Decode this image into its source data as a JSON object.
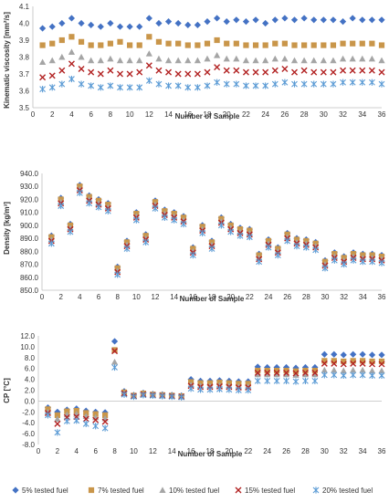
{
  "series_styles": [
    {
      "name": "5% tested fuel",
      "color": "#4472C4",
      "marker": "diamond"
    },
    {
      "name": "7% tested fuel",
      "color": "#C9964A",
      "marker": "square"
    },
    {
      "name": "10% tested fuel",
      "color": "#A5A5A5",
      "marker": "triangle"
    },
    {
      "name": "15% tested fuel",
      "color": "#B22222",
      "marker": "x"
    },
    {
      "name": "20% tested fuel",
      "color": "#5B9BD5",
      "marker": "star"
    }
  ],
  "chart_data": [
    {
      "type": "scatter",
      "ylabel": "Kinematic viscosity [mm²/s]",
      "xlabel": "Number of Sample",
      "xlim": [
        0,
        36
      ],
      "xticks": [
        0,
        2,
        4,
        6,
        8,
        10,
        12,
        14,
        16,
        18,
        20,
        22,
        24,
        26,
        28,
        30,
        32,
        34,
        36
      ],
      "ylim": [
        3.5,
        4.1
      ],
      "yticks": [
        "3.5",
        "3.6",
        "3.7",
        "3.8",
        "3.9",
        "4.0",
        "4.1"
      ],
      "grid": false,
      "x": [
        1,
        2,
        3,
        4,
        5,
        6,
        7,
        8,
        9,
        10,
        11,
        12,
        13,
        14,
        15,
        16,
        17,
        18,
        19,
        20,
        21,
        22,
        23,
        24,
        25,
        26,
        27,
        28,
        29,
        30,
        31,
        32,
        33,
        34,
        35,
        36
      ],
      "series": [
        {
          "name": "5% tested fuel",
          "values": [
            3.97,
            3.98,
            4.0,
            4.03,
            4.0,
            3.99,
            3.98,
            4.0,
            3.98,
            3.98,
            3.98,
            4.03,
            4.0,
            4.01,
            4.0,
            3.99,
            3.99,
            4.01,
            4.03,
            4.01,
            4.02,
            4.01,
            4.02,
            4.0,
            4.02,
            4.03,
            4.02,
            4.03,
            4.02,
            4.02,
            4.02,
            4.01,
            4.03,
            4.02,
            4.02,
            4.02
          ]
        },
        {
          "name": "7% tested fuel",
          "values": [
            3.87,
            3.88,
            3.9,
            3.92,
            3.89,
            3.87,
            3.87,
            3.88,
            3.89,
            3.87,
            3.87,
            3.92,
            3.89,
            3.88,
            3.88,
            3.87,
            3.87,
            3.88,
            3.9,
            3.88,
            3.88,
            3.87,
            3.87,
            3.87,
            3.88,
            3.88,
            3.87,
            3.87,
            3.87,
            3.87,
            3.87,
            3.88,
            3.88,
            3.88,
            3.88,
            3.87
          ]
        },
        {
          "name": "10% tested fuel",
          "values": [
            3.77,
            3.78,
            3.8,
            3.83,
            3.8,
            3.78,
            3.78,
            3.79,
            3.78,
            3.78,
            3.78,
            3.82,
            3.79,
            3.78,
            3.78,
            3.78,
            3.78,
            3.79,
            3.81,
            3.79,
            3.79,
            3.78,
            3.78,
            3.78,
            3.79,
            3.79,
            3.78,
            3.78,
            3.78,
            3.78,
            3.78,
            3.79,
            3.79,
            3.79,
            3.79,
            3.78
          ]
        },
        {
          "name": "15% tested fuel",
          "values": [
            3.68,
            3.69,
            3.72,
            3.76,
            3.73,
            3.71,
            3.7,
            3.72,
            3.7,
            3.7,
            3.71,
            3.75,
            3.72,
            3.71,
            3.7,
            3.7,
            3.7,
            3.71,
            3.74,
            3.72,
            3.72,
            3.71,
            3.71,
            3.71,
            3.72,
            3.73,
            3.71,
            3.72,
            3.71,
            3.71,
            3.71,
            3.72,
            3.72,
            3.72,
            3.72,
            3.71
          ]
        },
        {
          "name": "20% tested fuel",
          "values": [
            3.61,
            3.62,
            3.64,
            3.67,
            3.64,
            3.63,
            3.62,
            3.63,
            3.62,
            3.62,
            3.62,
            3.66,
            3.64,
            3.63,
            3.63,
            3.62,
            3.62,
            3.63,
            3.65,
            3.64,
            3.64,
            3.63,
            3.63,
            3.63,
            3.64,
            3.65,
            3.64,
            3.64,
            3.64,
            3.64,
            3.64,
            3.65,
            3.65,
            3.65,
            3.65,
            3.64
          ]
        }
      ]
    },
    {
      "type": "scatter",
      "ylabel": "Density [kg/m³]",
      "xlabel": "Number of Sample",
      "xlim": [
        0,
        36
      ],
      "xticks": [
        0,
        2,
        4,
        6,
        8,
        10,
        12,
        14,
        16,
        18,
        20,
        22,
        24,
        26,
        28,
        30,
        32,
        34,
        36
      ],
      "ylim": [
        850,
        940
      ],
      "yticks": [
        "850.0",
        "860.0",
        "870.0",
        "880.0",
        "890.0",
        "900.0",
        "910.0",
        "920.0",
        "930.0",
        "940.0"
      ],
      "grid": false,
      "x": [
        1,
        2,
        3,
        4,
        5,
        6,
        7,
        8,
        9,
        10,
        11,
        12,
        13,
        14,
        15,
        16,
        17,
        18,
        19,
        20,
        21,
        22,
        23,
        24,
        25,
        26,
        27,
        28,
        29,
        30,
        31,
        32,
        33,
        34,
        35,
        36
      ],
      "series": [
        {
          "name": "5% tested fuel",
          "values": [
            892,
            921,
            901,
            931,
            923,
            920,
            917,
            868,
            888,
            910,
            893,
            919,
            912,
            910,
            907,
            883,
            900,
            888,
            906,
            901,
            898,
            897,
            878,
            889,
            883,
            894,
            890,
            889,
            887,
            873,
            879,
            876,
            879,
            878,
            878,
            877
          ]
        },
        {
          "name": "7% tested fuel",
          "values": [
            891,
            920,
            900,
            930,
            922,
            919,
            916,
            867,
            887,
            909,
            892,
            918,
            911,
            909,
            906,
            882,
            899,
            887,
            905,
            900,
            897,
            896,
            877,
            888,
            882,
            893,
            889,
            888,
            886,
            872,
            878,
            875,
            878,
            877,
            877,
            876
          ]
        },
        {
          "name": "10% tested fuel",
          "values": [
            889,
            918,
            898,
            928,
            920,
            917,
            914,
            865,
            885,
            907,
            890,
            916,
            909,
            907,
            904,
            880,
            897,
            885,
            903,
            898,
            895,
            894,
            875,
            886,
            880,
            891,
            887,
            886,
            884,
            870,
            876,
            873,
            876,
            875,
            875,
            874
          ]
        },
        {
          "name": "15% tested fuel",
          "values": [
            888,
            917,
            897,
            927,
            919,
            916,
            913,
            864,
            884,
            906,
            889,
            915,
            908,
            906,
            903,
            879,
            896,
            884,
            902,
            897,
            894,
            893,
            874,
            885,
            879,
            890,
            886,
            885,
            883,
            869,
            875,
            872,
            875,
            874,
            874,
            873
          ]
        },
        {
          "name": "20% tested fuel",
          "values": [
            886,
            915,
            895,
            925,
            917,
            914,
            911,
            862,
            882,
            904,
            887,
            913,
            906,
            904,
            901,
            877,
            894,
            882,
            900,
            895,
            892,
            891,
            872,
            883,
            877,
            888,
            884,
            883,
            881,
            867,
            873,
            870,
            873,
            872,
            872,
            871
          ]
        }
      ]
    },
    {
      "type": "scatter",
      "ylabel": "CP [°C]",
      "xlabel": "Number of Sample",
      "xlim": [
        0,
        36
      ],
      "xticks": [
        0,
        2,
        4,
        6,
        8,
        10,
        12,
        14,
        16,
        18,
        20,
        22,
        24,
        26,
        28,
        30,
        32,
        34,
        36
      ],
      "ylim": [
        -8,
        12
      ],
      "yticks": [
        "-8.0",
        "-6.0",
        "-4.0",
        "-2.0",
        "0.0",
        "2.0",
        "4.0",
        "6.0",
        "8.0",
        "10.0",
        "12.0"
      ],
      "grid": false,
      "x": [
        1,
        2,
        3,
        4,
        5,
        6,
        7,
        8,
        9,
        10,
        11,
        12,
        13,
        14,
        15,
        16,
        17,
        18,
        19,
        20,
        21,
        22,
        23,
        24,
        25,
        26,
        27,
        28,
        29,
        30,
        31,
        32,
        33,
        34,
        35,
        36
      ],
      "series": [
        {
          "name": "5% tested fuel",
          "values": [
            -1.2,
            -2.0,
            -1.6,
            -1.4,
            -1.8,
            -2.0,
            -2.1,
            11.0,
            1.8,
            1.1,
            1.5,
            1.3,
            1.2,
            1.1,
            1.0,
            4.0,
            3.7,
            3.7,
            3.8,
            3.7,
            3.6,
            3.6,
            6.3,
            6.2,
            6.2,
            6.2,
            6.1,
            6.2,
            6.2,
            8.6,
            8.6,
            8.5,
            8.6,
            8.6,
            8.5,
            8.5
          ]
        },
        {
          "name": "7% tested fuel",
          "values": [
            -1.5,
            -2.6,
            -1.9,
            -1.8,
            -2.2,
            -2.4,
            -2.6,
            9.4,
            1.6,
            1.0,
            1.4,
            1.2,
            1.1,
            1.0,
            0.9,
            3.5,
            3.3,
            3.3,
            3.4,
            3.3,
            3.2,
            3.2,
            5.6,
            5.6,
            5.6,
            5.6,
            5.5,
            5.6,
            5.6,
            7.4,
            7.4,
            7.3,
            7.4,
            7.4,
            7.3,
            7.3
          ]
        },
        {
          "name": "10% tested fuel",
          "values": [
            -2.0,
            -3.3,
            -2.5,
            -2.4,
            -2.8,
            -3.0,
            -3.2,
            7.2,
            1.4,
            0.9,
            1.2,
            1.1,
            1.0,
            0.9,
            0.8,
            3.0,
            2.8,
            2.8,
            2.9,
            2.8,
            2.7,
            2.7,
            4.9,
            4.9,
            4.9,
            4.9,
            4.8,
            4.9,
            4.9,
            5.7,
            5.7,
            5.6,
            5.7,
            5.7,
            5.6,
            5.6
          ]
        },
        {
          "name": "15% tested fuel",
          "values": [
            -2.2,
            -4.2,
            -3.0,
            -2.9,
            -3.3,
            -3.5,
            -3.8,
            9.2,
            1.4,
            0.9,
            1.2,
            1.1,
            1.0,
            0.9,
            0.8,
            2.8,
            2.6,
            2.6,
            2.7,
            2.6,
            2.5,
            2.5,
            5.2,
            5.2,
            5.2,
            5.2,
            5.1,
            5.2,
            5.2,
            6.9,
            6.9,
            6.8,
            6.9,
            6.9,
            6.8,
            6.8
          ]
        },
        {
          "name": "20% tested fuel",
          "values": [
            -2.6,
            -5.8,
            -3.7,
            -3.6,
            -4.2,
            -4.6,
            -5.0,
            6.2,
            1.2,
            0.8,
            1.1,
            1.0,
            0.9,
            0.8,
            0.7,
            2.3,
            2.1,
            2.1,
            2.2,
            2.1,
            2.0,
            2.0,
            3.7,
            3.7,
            3.7,
            3.7,
            3.6,
            3.7,
            3.7,
            4.8,
            4.8,
            4.7,
            4.8,
            4.8,
            4.7,
            4.7
          ]
        }
      ]
    }
  ]
}
